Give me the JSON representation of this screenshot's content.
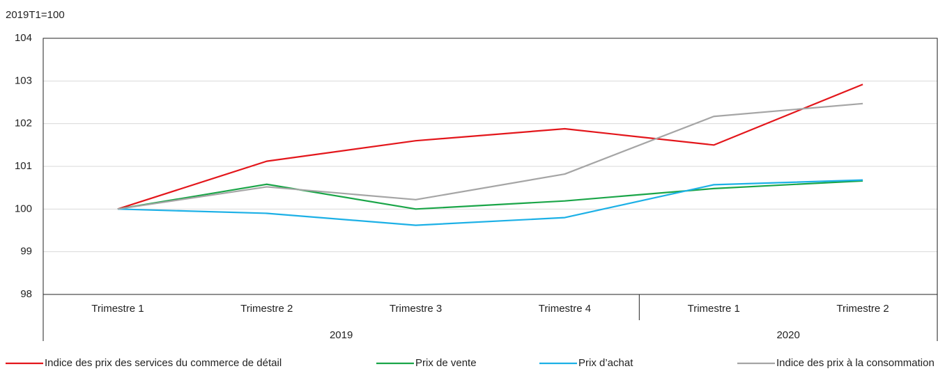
{
  "chart_data": {
    "type": "line",
    "y_axis_label": "2019T1=100",
    "categories": [
      "Trimestre 1",
      "Trimestre 2",
      "Trimestre 3",
      "Trimestre 4",
      "Trimestre 1",
      "Trimestre 2"
    ],
    "groups": [
      {
        "label": "2019",
        "span": 4
      },
      {
        "label": "2020",
        "span": 2
      }
    ],
    "series": [
      {
        "name": "Indice des prix des services du commerce de détail",
        "color": "#e3161b",
        "values": [
          100,
          101.12,
          101.6,
          101.88,
          101.5,
          102.92
        ]
      },
      {
        "name": "Prix de vente",
        "color": "#1aa548",
        "values": [
          100,
          100.58,
          100,
          100.19,
          100.48,
          100.66
        ]
      },
      {
        "name": "Prix d’achat",
        "color": "#1cb0e6",
        "values": [
          100,
          99.9,
          99.62,
          99.8,
          100.57,
          100.68
        ]
      },
      {
        "name": "Indice des prix à la consommation",
        "color": "#a5a5a5",
        "values": [
          100,
          100.52,
          100.22,
          100.82,
          102.17,
          102.47
        ]
      }
    ],
    "ylim": [
      98,
      104
    ],
    "yticks": [
      98,
      99,
      100,
      101,
      102,
      103,
      104
    ],
    "grid": true
  }
}
